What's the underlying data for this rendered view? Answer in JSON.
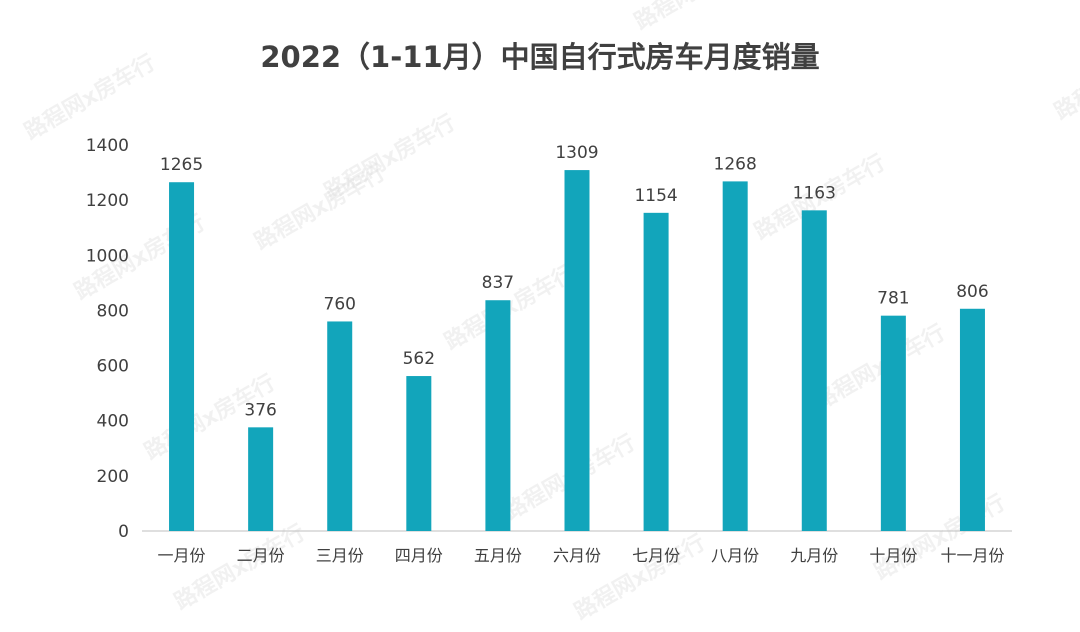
{
  "title": "2022（1-11月）中国自行式房车月度销量",
  "watermark": "路程网x房车行",
  "colors": {
    "bar": "#12a5bb",
    "text": "#404040",
    "axis": "#bfbfbf"
  },
  "chart_data": {
    "type": "bar",
    "title": "2022（1-11月）中国自行式房车月度销量",
    "xlabel": "",
    "ylabel": "",
    "categories": [
      "一月份",
      "二月份",
      "三月份",
      "四月份",
      "五月份",
      "六月份",
      "七月份",
      "八月份",
      "九月份",
      "十月份",
      "十一月份"
    ],
    "values": [
      1265,
      376,
      760,
      562,
      837,
      1309,
      1154,
      1268,
      1163,
      781,
      806
    ],
    "ylim": [
      0,
      1400
    ],
    "yticks": [
      0,
      200,
      400,
      600,
      800,
      1000,
      1200,
      1400
    ],
    "grid": false,
    "legend": "none",
    "data_labels": true
  }
}
